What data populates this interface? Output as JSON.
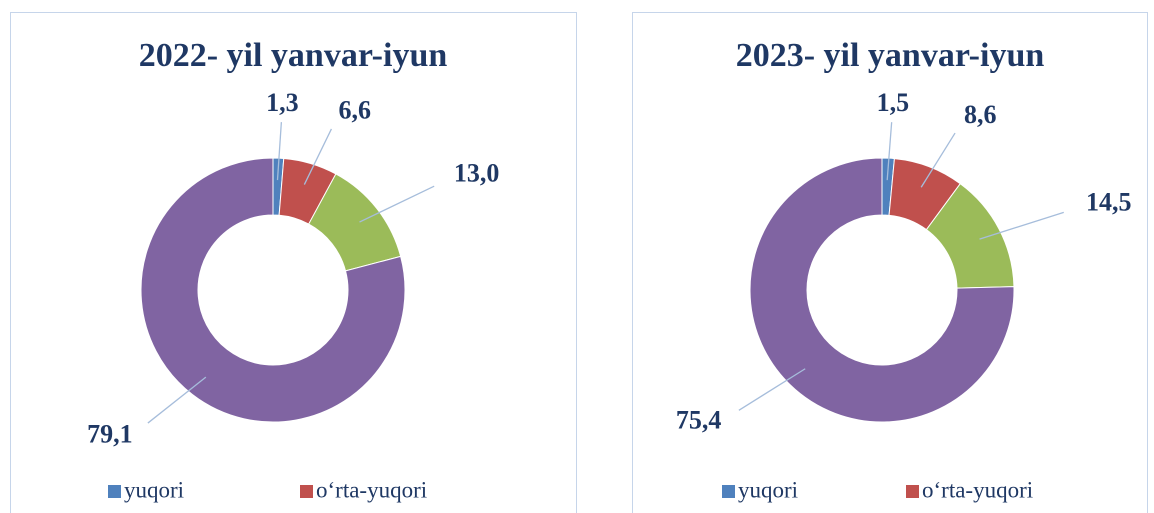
{
  "chart_data": [
    {
      "type": "donut",
      "title": "2022- yil yanvar-iyun",
      "categories": [
        "yuqori",
        "o‘rta-yuqori",
        null,
        null
      ],
      "values": [
        1.3,
        6.6,
        13.0,
        79.1
      ],
      "value_labels": [
        "1,3",
        "6,6",
        "13,0",
        "79,1"
      ],
      "colors": [
        "#4f81bd",
        "#c0504d",
        "#9bbb59",
        "#8064a2"
      ]
    },
    {
      "type": "donut",
      "title": "2023- yil yanvar-iyun",
      "categories": [
        "yuqori",
        "o‘rta-yuqori",
        null,
        null
      ],
      "values": [
        1.5,
        8.6,
        14.5,
        75.4
      ],
      "value_labels": [
        "1,5",
        "8,6",
        "14,5",
        "75,4"
      ],
      "colors": [
        "#4f81bd",
        "#c0504d",
        "#9bbb59",
        "#8064a2"
      ]
    }
  ]
}
